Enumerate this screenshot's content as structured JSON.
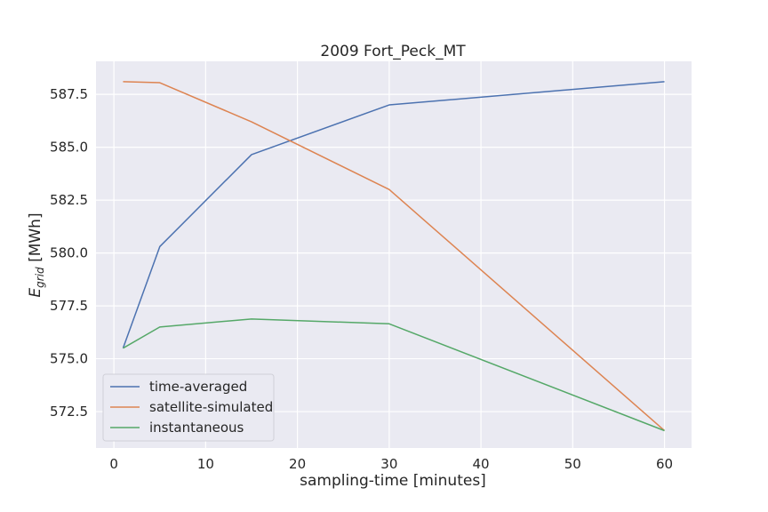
{
  "chart_data": {
    "type": "line",
    "title": "2009 Fort_Peck_MT",
    "xlabel": "sampling-time [minutes]",
    "ylabel_main": "E",
    "ylabel_sub": "grid",
    "ylabel_unit": " [MWh]",
    "xlim": [
      -1.95,
      62.95
    ],
    "ylim": [
      570.78,
      589.06
    ],
    "xticks": [
      0,
      10,
      20,
      30,
      40,
      50,
      60
    ],
    "yticks": [
      572.5,
      575.0,
      577.5,
      580.0,
      582.5,
      585.0,
      587.5
    ],
    "ytick_labels": [
      "572.5",
      "575.0",
      "577.5",
      "580.0",
      "582.5",
      "585.0",
      "587.5"
    ],
    "x": [
      1,
      5,
      15,
      30,
      60
    ],
    "grid": true,
    "legend_position": "lower-left",
    "series": [
      {
        "name": "time-averaged",
        "color": "#4c72b0",
        "values": [
          575.5,
          580.3,
          584.65,
          587.0,
          588.1
        ]
      },
      {
        "name": "satellite-simulated",
        "color": "#dd8452",
        "values": [
          588.1,
          588.05,
          586.2,
          583.0,
          571.6
        ]
      },
      {
        "name": "instantaneous",
        "color": "#55a868",
        "values": [
          575.5,
          576.5,
          576.88,
          576.65,
          571.6
        ]
      }
    ]
  }
}
